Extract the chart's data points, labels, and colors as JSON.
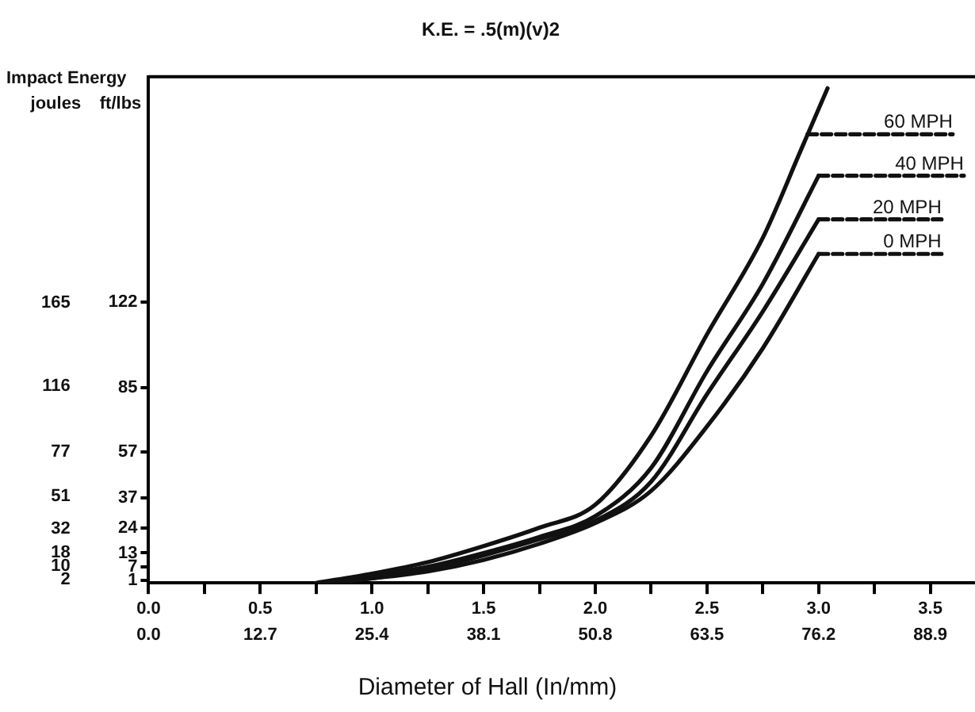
{
  "chart_data": {
    "type": "line",
    "title": "K.E. = .5(m)(v)2",
    "xlabel": "Diameter of Hall (In/mm)",
    "ylabel": "ft/lbs",
    "y2label": "joules",
    "annotations": [
      "Impact Energy"
    ],
    "xlim": [
      0,
      3.7
    ],
    "xticks": [
      {
        "value": 0,
        "label": "0.0"
      },
      {
        "value": 0.25,
        "label": null
      },
      {
        "value": 0.5,
        "label": "0.5"
      },
      {
        "value": 0.75,
        "label": null
      },
      {
        "value": 1,
        "label": "1.0"
      },
      {
        "value": 1.25,
        "label": null
      },
      {
        "value": 1.5,
        "label": "1.5"
      },
      {
        "value": 1.75,
        "label": null
      },
      {
        "value": 2,
        "label": "2.0"
      },
      {
        "value": 2.25,
        "label": null
      },
      {
        "value": 2.5,
        "label": "2.5"
      },
      {
        "value": 2.75,
        "label": null
      },
      {
        "value": 3,
        "label": "3.0"
      },
      {
        "value": 3.25,
        "label": null
      },
      {
        "value": 3.5,
        "label": "3.5"
      }
    ],
    "x2lim": [
      0,
      93.98
    ],
    "x2ticks": [
      {
        "value": 0,
        "label": "0.0"
      },
      12.7,
      25.4,
      38.1,
      50.8,
      63.5,
      76.2,
      88.9
    ],
    "ylim": [
      0,
      220
    ],
    "yticks": [
      1,
      7,
      13,
      24,
      37,
      57,
      85,
      122
    ],
    "y2lim": [
      0,
      298
    ],
    "y2ticks": [
      2,
      10,
      18,
      32,
      51,
      77,
      116,
      165
    ],
    "grid": false,
    "legend": false,
    "marker": "none",
    "series": [
      {
        "color": "#111111",
        "line_style": "solid",
        "x": [
          0.75,
          1.0,
          1.25,
          1.5,
          1.75,
          2.0,
          2.25,
          2.5,
          2.75,
          2.92,
          3.04
        ],
        "values": [
          0,
          4,
          9,
          16,
          24,
          34,
          64,
          108,
          150,
          188,
          215
        ]
      },
      {
        "color": "#111111",
        "line_style": "solid",
        "x": [
          0.8,
          1.0,
          1.25,
          1.5,
          1.75,
          2.0,
          2.25,
          2.5,
          2.75,
          3.0
        ],
        "values": [
          0,
          3,
          7,
          13,
          20,
          29,
          50,
          92,
          130,
          177
        ]
      },
      {
        "color": "#111111",
        "line_style": "solid",
        "x": [
          0.8,
          1.0,
          1.25,
          1.5,
          1.75,
          2.0,
          2.25,
          2.5,
          2.75,
          3.0
        ],
        "values": [
          0,
          2,
          6,
          12,
          19,
          27,
          44,
          82,
          118,
          158
        ]
      },
      {
        "color": "#111111",
        "line_style": "solid",
        "x": [
          0.8,
          1.0,
          1.25,
          1.5,
          1.75,
          2.0,
          2.25,
          2.5,
          2.75,
          3.0
        ],
        "values": [
          0,
          2,
          5,
          10,
          17,
          26,
          40,
          68,
          102,
          143
        ]
      },
      {
        "name": "60 MPH",
        "color": "#111111",
        "line_style": "dashed",
        "x": [
          2.95,
          3.6
        ],
        "values": [
          195,
          195
        ]
      },
      {
        "name": "40 MPH",
        "color": "#111111",
        "line_style": "dashed",
        "x": [
          3.0,
          3.65
        ],
        "values": [
          177,
          177
        ]
      },
      {
        "name": "20 MPH",
        "color": "#111111",
        "line_style": "dashed",
        "x": [
          3.0,
          3.55
        ],
        "values": [
          158,
          158
        ]
      },
      {
        "name": "0 MPH",
        "color": "#111111",
        "line_style": "dashed",
        "x": [
          3.0,
          3.55
        ],
        "values": [
          143,
          143
        ]
      }
    ]
  }
}
